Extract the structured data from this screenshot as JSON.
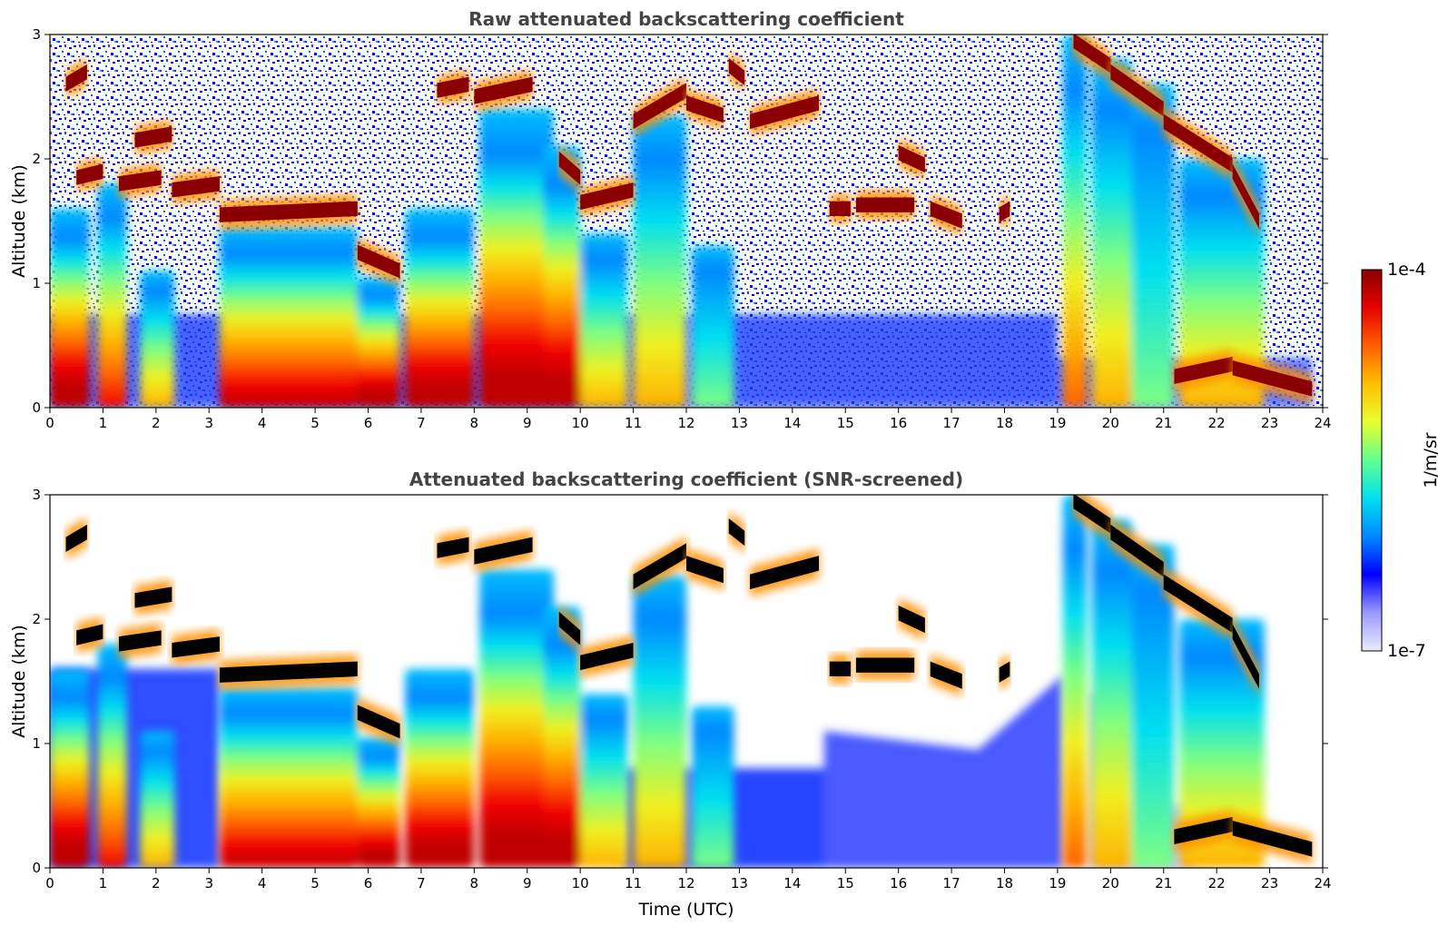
{
  "chart_data": [
    {
      "type": "heatmap",
      "title": "Raw attenuated backscattering coefficient",
      "xlabel": "",
      "ylabel": "Altitude (km)",
      "xlim": [
        0,
        24
      ],
      "ylim": [
        0,
        3
      ],
      "xticks": [
        "0",
        "1",
        "2",
        "3",
        "4",
        "5",
        "6",
        "7",
        "8",
        "9",
        "10",
        "11",
        "12",
        "13",
        "14",
        "15",
        "16",
        "17",
        "18",
        "19",
        "20",
        "21",
        "22",
        "23",
        "24"
      ],
      "yticks": [
        "0",
        "1",
        "2",
        "3"
      ],
      "screened": false
    },
    {
      "type": "heatmap",
      "title": "Attenuated backscattering coefficient (SNR-screened)",
      "xlabel": "Time (UTC)",
      "ylabel": "Altitude (km)",
      "xlim": [
        0,
        24
      ],
      "ylim": [
        0,
        3
      ],
      "xticks": [
        "0",
        "1",
        "2",
        "3",
        "4",
        "5",
        "6",
        "7",
        "8",
        "9",
        "10",
        "11",
        "12",
        "13",
        "14",
        "15",
        "16",
        "17",
        "18",
        "19",
        "20",
        "21",
        "22",
        "23",
        "24"
      ],
      "yticks": [
        "0",
        "1",
        "2",
        "3"
      ],
      "screened": true
    }
  ],
  "colorbar": {
    "label": "1/m/sr",
    "max_label": "1e-4",
    "min_label": "1e-7",
    "scale": "log",
    "range": [
      1e-07,
      0.0001
    ],
    "colormap": [
      "#ebebff",
      "#9a9aff",
      "#0000ff",
      "#0088ff",
      "#00e0f0",
      "#60ff90",
      "#e8ff30",
      "#ffc000",
      "#ff6000",
      "#e80000",
      "#8a0000"
    ]
  },
  "features": {
    "cloud_layers": [
      [
        0.3,
        0.7,
        2.6,
        2.7
      ],
      [
        0.5,
        1.0,
        1.85,
        1.9
      ],
      [
        1.3,
        2.1,
        1.8,
        1.85
      ],
      [
        1.6,
        2.3,
        2.15,
        2.2
      ],
      [
        2.3,
        3.2,
        1.75,
        1.8
      ],
      [
        3.2,
        5.8,
        1.55,
        1.6
      ],
      [
        5.8,
        6.6,
        1.25,
        1.1
      ],
      [
        7.3,
        7.9,
        2.55,
        2.6
      ],
      [
        8.0,
        9.1,
        2.5,
        2.6
      ],
      [
        9.6,
        10.0,
        2.0,
        1.85
      ],
      [
        10.0,
        11.0,
        1.65,
        1.75
      ],
      [
        11.0,
        12.0,
        2.3,
        2.55
      ],
      [
        12.0,
        12.7,
        2.45,
        2.35
      ],
      [
        12.8,
        13.1,
        2.75,
        2.65
      ],
      [
        13.2,
        14.5,
        2.3,
        2.45
      ],
      [
        14.7,
        15.1,
        1.6,
        1.6
      ],
      [
        15.2,
        16.3,
        1.63,
        1.63
      ],
      [
        16.0,
        16.5,
        2.05,
        1.95
      ],
      [
        16.6,
        17.2,
        1.6,
        1.5
      ],
      [
        17.9,
        18.1,
        1.55,
        1.6
      ],
      [
        19.3,
        20.0,
        2.95,
        2.75
      ],
      [
        20.0,
        21.0,
        2.7,
        2.4
      ],
      [
        21.0,
        22.3,
        2.3,
        1.95
      ],
      [
        22.3,
        22.8,
        1.9,
        1.5
      ],
      [
        21.2,
        22.3,
        0.25,
        0.35
      ],
      [
        22.3,
        23.8,
        0.32,
        0.15
      ]
    ],
    "aerosol_columns": [
      [
        0.0,
        0.75,
        1.6,
        8.5
      ],
      [
        0.9,
        1.45,
        1.8,
        7
      ],
      [
        1.7,
        2.35,
        1.1,
        5
      ],
      [
        3.2,
        5.8,
        1.45,
        8
      ],
      [
        5.8,
        6.6,
        1.05,
        8.5
      ],
      [
        6.7,
        8.0,
        1.6,
        9
      ],
      [
        8.1,
        9.5,
        2.4,
        8.5
      ],
      [
        9.3,
        10.0,
        2.1,
        9
      ],
      [
        10.0,
        10.9,
        1.4,
        4.5
      ],
      [
        11.0,
        12.0,
        2.35,
        5
      ],
      [
        12.1,
        12.9,
        1.3,
        3
      ],
      [
        19.1,
        19.55,
        3.0,
        5.5
      ],
      [
        19.65,
        20.4,
        2.8,
        5
      ],
      [
        20.4,
        21.2,
        2.6,
        3
      ],
      [
        21.3,
        22.9,
        2.0,
        5
      ]
    ]
  }
}
